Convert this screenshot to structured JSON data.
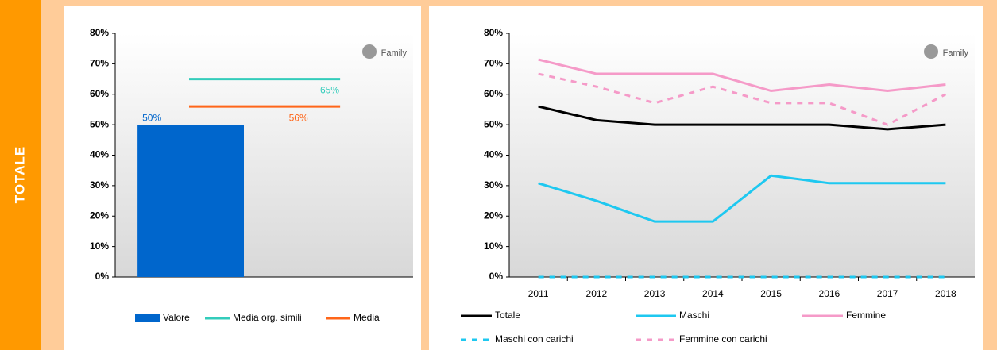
{
  "side_label": "TOTALE",
  "chart_data": [
    {
      "type": "bar",
      "logo": "Family",
      "series": [
        {
          "name": "Valore",
          "color": "#0066cc",
          "values": [
            50
          ],
          "value_labels": [
            "50%"
          ]
        }
      ],
      "lines": [
        {
          "name": "Media org. simili",
          "color": "#33ccbb",
          "values": [
            65
          ],
          "value_labels": [
            "65%"
          ]
        },
        {
          "name": "Media",
          "color": "#ff6619",
          "values": [
            56
          ],
          "value_labels": [
            "56%"
          ]
        }
      ],
      "ylim": [
        0,
        80
      ],
      "yticks": [
        {
          "value": 0,
          "label": "0%"
        },
        {
          "value": 10,
          "label": "10%"
        },
        {
          "value": 20,
          "label": "20%"
        },
        {
          "value": 30,
          "label": "30%"
        },
        {
          "value": 40,
          "label": "40%"
        },
        {
          "value": 50,
          "label": "50%"
        },
        {
          "value": 60,
          "label": "60%"
        },
        {
          "value": 70,
          "label": "70%"
        },
        {
          "value": 80,
          "label": "80%"
        }
      ]
    },
    {
      "type": "line",
      "logo": "Family",
      "categories": [
        "2011",
        "2012",
        "2013",
        "2014",
        "2015",
        "2016",
        "2017",
        "2018"
      ],
      "series": [
        {
          "name": "Totale",
          "color": "#000000",
          "dash": false,
          "values": [
            56,
            51.5,
            50,
            50,
            50,
            50,
            48.5,
            50
          ]
        },
        {
          "name": "Maschi",
          "color": "#1ec8f0",
          "dash": false,
          "values": [
            30.8,
            25,
            18.2,
            18.2,
            33.3,
            30.8,
            30.8,
            30.8
          ]
        },
        {
          "name": "Femmine",
          "color": "#f59ac8",
          "dash": false,
          "values": [
            71.4,
            66.7,
            66.7,
            66.7,
            61.1,
            63.2,
            61.1,
            63.2
          ]
        },
        {
          "name": "Maschi con carichi",
          "color": "#1ec8f0",
          "dash": true,
          "values": [
            0,
            0,
            0,
            0,
            0,
            0,
            0,
            0
          ]
        },
        {
          "name": "Femmine con carichi",
          "color": "#f59ac8",
          "dash": true,
          "values": [
            66.7,
            62.5,
            57.1,
            62.5,
            57.1,
            57.1,
            50,
            60
          ]
        }
      ],
      "ylim": [
        0,
        80
      ],
      "yticks": [
        {
          "value": 0,
          "label": "0%"
        },
        {
          "value": 10,
          "label": "10%"
        },
        {
          "value": 20,
          "label": "20%"
        },
        {
          "value": 30,
          "label": "30%"
        },
        {
          "value": 40,
          "label": "40%"
        },
        {
          "value": 50,
          "label": "50%"
        },
        {
          "value": 60,
          "label": "60%"
        },
        {
          "value": 70,
          "label": "70%"
        },
        {
          "value": 80,
          "label": "80%"
        }
      ]
    }
  ]
}
